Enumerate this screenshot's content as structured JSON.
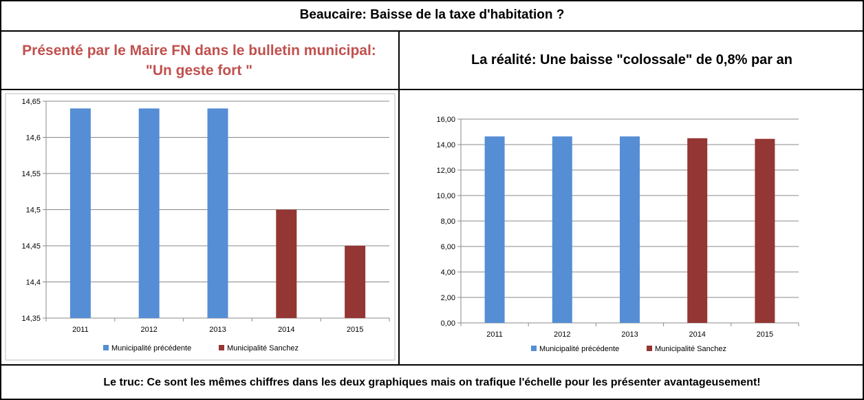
{
  "title": "Beaucaire:  Baisse de la taxe d'habitation ?",
  "left_heading": {
    "line1": "Présenté par le Maire FN dans le bulletin municipal:",
    "line2": "\"Un geste fort \""
  },
  "right_heading": "La réalité: Une baisse \"colossale\" de   0,8%  par an",
  "footer": "Le truc: Ce sont les mêmes chiffres  dans les deux graphiques mais on trafique l'échelle pour les présenter avantageusement!",
  "colors": {
    "previous": "#558ed5",
    "sanchez": "#943634"
  },
  "chart_data": [
    {
      "type": "bar",
      "categories": [
        "2011",
        "2012",
        "2013",
        "2014",
        "2015"
      ],
      "series": [
        {
          "name": "Municipalité précédente",
          "values": [
            14.64,
            14.64,
            14.64,
            null,
            null
          ]
        },
        {
          "name": "Municipalité Sanchez",
          "values": [
            null,
            null,
            null,
            14.5,
            14.45
          ]
        }
      ],
      "ylim": [
        14.35,
        14.65
      ],
      "yticks": [
        "14,35",
        "14,4",
        "14,45",
        "14,5",
        "14,55",
        "14,6",
        "14,65"
      ],
      "ytick_values": [
        14.35,
        14.4,
        14.45,
        14.5,
        14.55,
        14.6,
        14.65
      ],
      "grid": true,
      "legend": "bottom"
    },
    {
      "type": "bar",
      "categories": [
        "2011",
        "2012",
        "2013",
        "2014",
        "2015"
      ],
      "series": [
        {
          "name": "Municipalité précédente",
          "values": [
            14.64,
            14.64,
            14.64,
            null,
            null
          ]
        },
        {
          "name": "Municipalité Sanchez",
          "values": [
            null,
            null,
            null,
            14.5,
            14.45
          ]
        }
      ],
      "ylim": [
        0,
        16
      ],
      "yticks": [
        "0,00",
        "2,00",
        "4,00",
        "6,00",
        "8,00",
        "10,00",
        "12,00",
        "14,00",
        "16,00"
      ],
      "ytick_values": [
        0,
        2,
        4,
        6,
        8,
        10,
        12,
        14,
        16
      ],
      "grid": true,
      "legend": "bottom"
    }
  ]
}
